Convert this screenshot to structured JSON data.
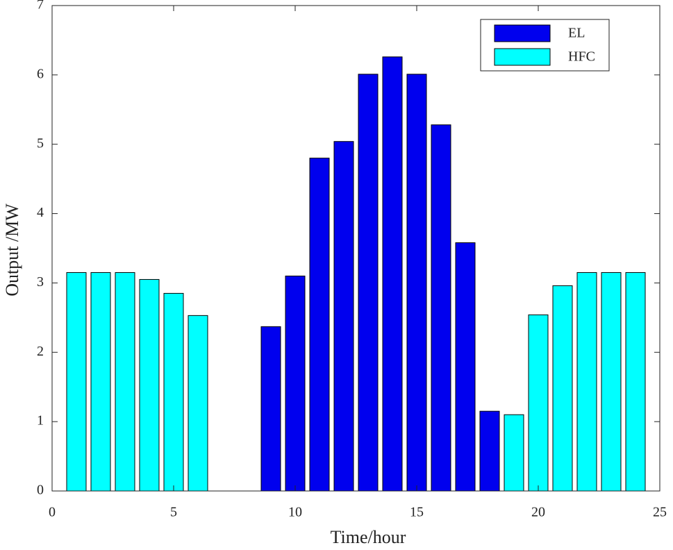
{
  "chart_data": {
    "type": "bar",
    "x_label": "Time/hour",
    "y_label": "Output /MW",
    "x": [
      1,
      2,
      3,
      4,
      5,
      6,
      7,
      8,
      9,
      10,
      11,
      12,
      13,
      14,
      15,
      16,
      17,
      18,
      19,
      20,
      21,
      22,
      23,
      24
    ],
    "series": [
      {
        "name": "EL",
        "color": "#0000ee",
        "values": [
          null,
          null,
          null,
          null,
          null,
          null,
          null,
          null,
          2.37,
          3.1,
          4.8,
          5.04,
          6.01,
          6.26,
          6.01,
          5.28,
          3.58,
          1.15,
          null,
          null,
          null,
          null,
          null,
          null
        ]
      },
      {
        "name": "HFC",
        "color": "#00ffff",
        "values": [
          3.15,
          3.15,
          3.15,
          3.05,
          2.85,
          2.53,
          0,
          null,
          null,
          null,
          null,
          null,
          null,
          null,
          null,
          null,
          null,
          null,
          1.1,
          2.54,
          2.96,
          3.15,
          3.15,
          3.15
        ]
      }
    ],
    "xlim": [
      0,
      25
    ],
    "xticks": [
      0,
      5,
      10,
      15,
      20,
      25
    ],
    "ylim": [
      0,
      7
    ],
    "yticks": [
      0,
      1,
      2,
      3,
      4,
      5,
      6,
      7
    ],
    "legend": "upper right"
  }
}
